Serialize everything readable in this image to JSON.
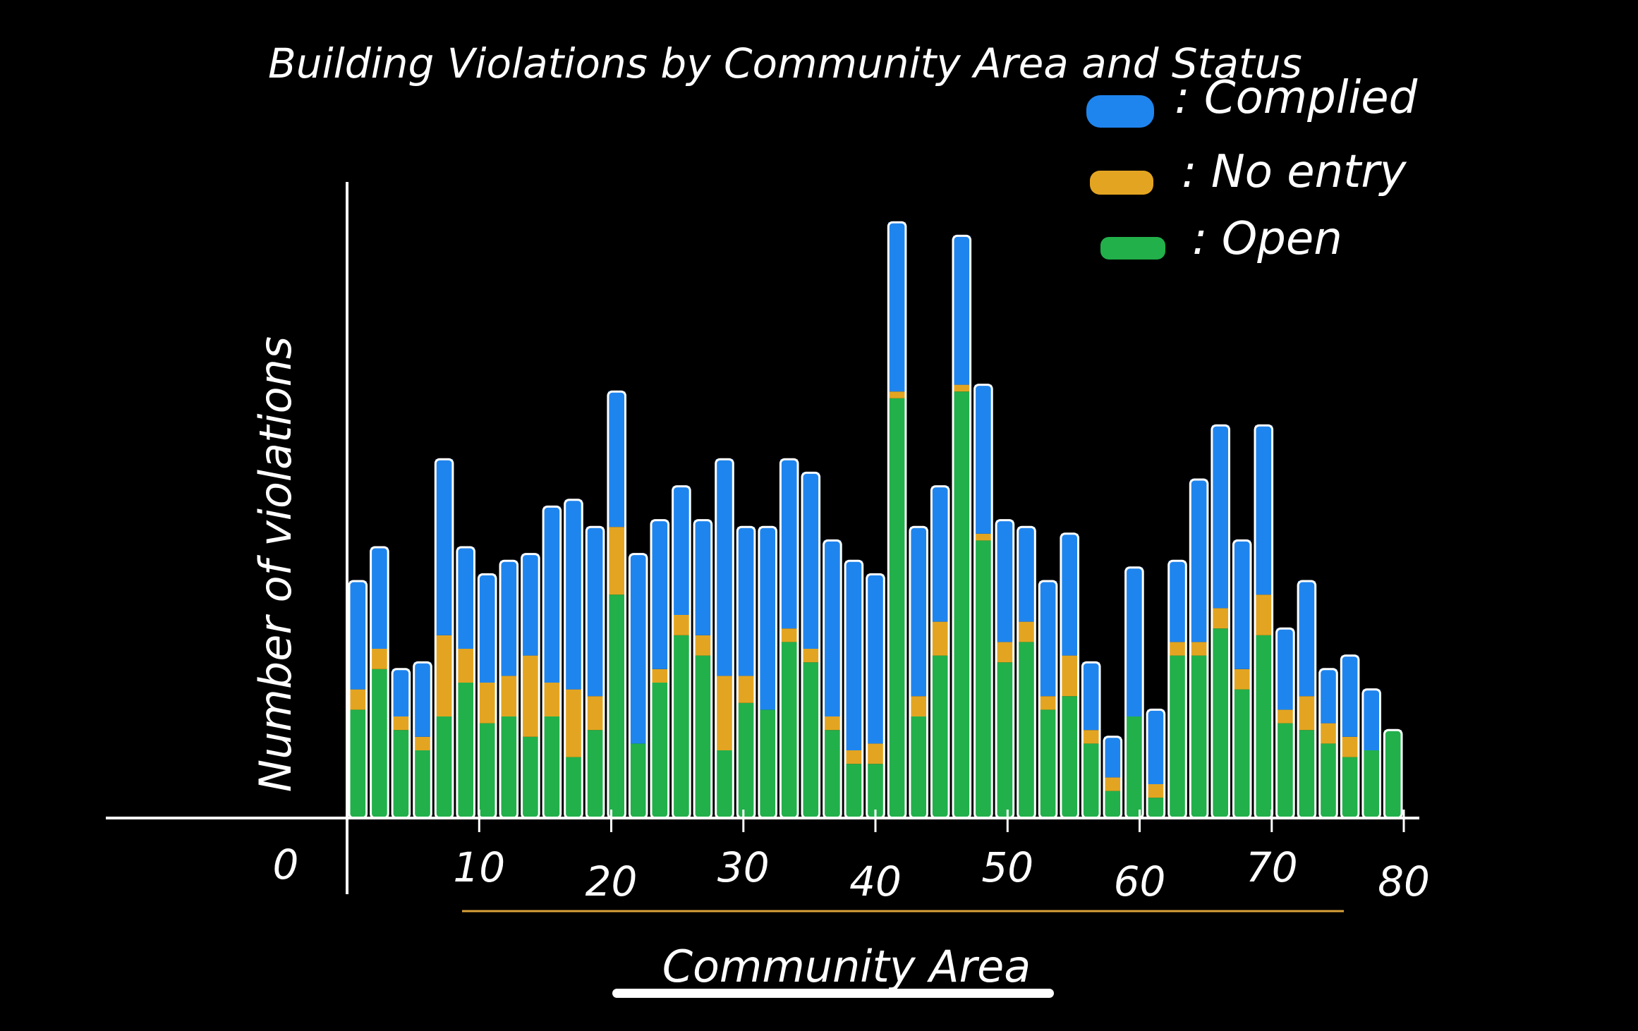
{
  "chart_data": {
    "type": "bar",
    "stacked": true,
    "title": "Building Violations by Community Area and Status",
    "xlabel": "Community Area",
    "ylabel": "Number of violations",
    "x_ticks": [
      0,
      10,
      20,
      30,
      40,
      50,
      60,
      70,
      80
    ],
    "xlim": [
      0,
      80
    ],
    "ylim": [
      0,
      100
    ],
    "grid": false,
    "legend_position": "top-right",
    "series": [
      {
        "name": "Open",
        "color": "#22b04b",
        "values": [
          16,
          22,
          13,
          10,
          15,
          20,
          14,
          15,
          12,
          15,
          9,
          13,
          33,
          11,
          20,
          27,
          24,
          10,
          17,
          16,
          26,
          23,
          13,
          8,
          8,
          62,
          15,
          24,
          63,
          41,
          23,
          26,
          16,
          18,
          11,
          4,
          15,
          3,
          24,
          24,
          28,
          19,
          27,
          14,
          13,
          11,
          9,
          10,
          13
        ]
      },
      {
        "name": "No entry",
        "color": "#e3a521",
        "values": [
          3,
          3,
          2,
          2,
          12,
          5,
          6,
          6,
          12,
          5,
          10,
          5,
          10,
          0,
          2,
          3,
          3,
          11,
          4,
          0,
          2,
          2,
          2,
          2,
          3,
          1,
          3,
          5,
          1,
          1,
          3,
          3,
          2,
          6,
          2,
          2,
          0,
          2,
          2,
          2,
          3,
          3,
          6,
          2,
          5,
          3,
          3,
          0,
          0
        ]
      },
      {
        "name": "Complied",
        "color": "#1f85ee",
        "values": [
          16,
          15,
          7,
          11,
          26,
          15,
          16,
          17,
          15,
          26,
          28,
          25,
          20,
          28,
          22,
          19,
          17,
          32,
          22,
          27,
          25,
          26,
          26,
          28,
          25,
          25,
          25,
          20,
          22,
          22,
          18,
          14,
          17,
          18,
          10,
          6,
          22,
          11,
          12,
          24,
          27,
          19,
          25,
          12,
          17,
          8,
          12,
          9,
          0
        ]
      }
    ]
  },
  "legend": [
    {
      "label": ": Complied",
      "color": "#1f85ee"
    },
    {
      "label": ": No entry",
      "color": "#e3a521"
    },
    {
      "label": ": Open",
      "color": "#22b04b"
    }
  ],
  "colors": {
    "background": "#000000",
    "axes": "#ffffff",
    "xlabel_underline": "#d9a23a"
  }
}
